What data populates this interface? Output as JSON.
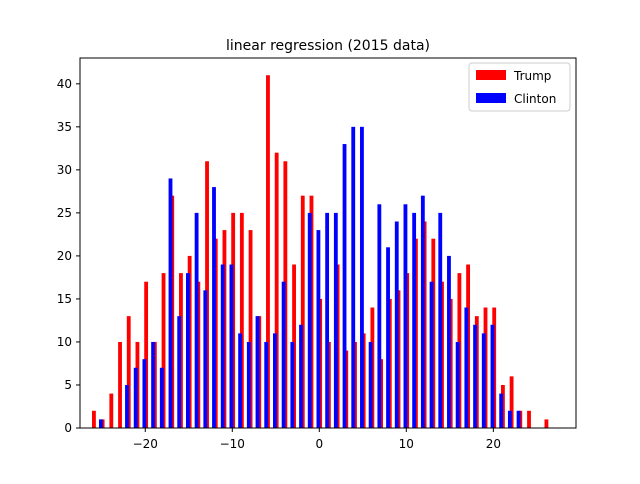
{
  "chart_data": {
    "type": "bar",
    "title": "linear regression (2015 data)",
    "xlabel": "",
    "ylabel": "",
    "xlim": [
      -27.5,
      29.5
    ],
    "ylim": [
      0,
      43
    ],
    "x_ticks": [
      -20,
      -10,
      0,
      10,
      20
    ],
    "x_tick_labels": [
      "−20",
      "−10",
      "0",
      "10",
      "20"
    ],
    "y_ticks": [
      0,
      5,
      10,
      15,
      20,
      25,
      30,
      35,
      40
    ],
    "y_tick_labels": [
      "0",
      "5",
      "10",
      "15",
      "20",
      "25",
      "30",
      "35",
      "40"
    ],
    "grid": false,
    "legend_position": "top-right",
    "series": [
      {
        "name": "Trump",
        "color": "#ff0000",
        "points": [
          {
            "x": -25.9,
            "y": 2
          },
          {
            "x": -24.9,
            "y": 1
          },
          {
            "x": -23.9,
            "y": 4
          },
          {
            "x": -22.9,
            "y": 10
          },
          {
            "x": -21.9,
            "y": 13
          },
          {
            "x": -20.9,
            "y": 10
          },
          {
            "x": -19.9,
            "y": 17
          },
          {
            "x": -18.9,
            "y": 10
          },
          {
            "x": -17.9,
            "y": 18
          },
          {
            "x": -16.9,
            "y": 27
          },
          {
            "x": -15.9,
            "y": 18
          },
          {
            "x": -14.9,
            "y": 20
          },
          {
            "x": -13.9,
            "y": 17
          },
          {
            "x": -12.9,
            "y": 31
          },
          {
            "x": -11.9,
            "y": 22
          },
          {
            "x": -10.9,
            "y": 23
          },
          {
            "x": -9.9,
            "y": 25
          },
          {
            "x": -8.9,
            "y": 25
          },
          {
            "x": -7.9,
            "y": 23
          },
          {
            "x": -6.9,
            "y": 13
          },
          {
            "x": -5.9,
            "y": 41
          },
          {
            "x": -4.9,
            "y": 32
          },
          {
            "x": -3.9,
            "y": 31
          },
          {
            "x": -2.9,
            "y": 19
          },
          {
            "x": -1.9,
            "y": 27
          },
          {
            "x": -0.9,
            "y": 27
          },
          {
            "x": 0.1,
            "y": 15
          },
          {
            "x": 1.1,
            "y": 10
          },
          {
            "x": 2.1,
            "y": 19
          },
          {
            "x": 3.1,
            "y": 9
          },
          {
            "x": 4.1,
            "y": 10
          },
          {
            "x": 5.1,
            "y": 11
          },
          {
            "x": 6.1,
            "y": 14
          },
          {
            "x": 7.1,
            "y": 8
          },
          {
            "x": 8.1,
            "y": 15
          },
          {
            "x": 9.1,
            "y": 16
          },
          {
            "x": 10.1,
            "y": 18
          },
          {
            "x": 11.1,
            "y": 22
          },
          {
            "x": 12.1,
            "y": 24
          },
          {
            "x": 13.1,
            "y": 22
          },
          {
            "x": 14.1,
            "y": 17
          },
          {
            "x": 15.1,
            "y": 15
          },
          {
            "x": 16.1,
            "y": 18
          },
          {
            "x": 17.1,
            "y": 19
          },
          {
            "x": 18.1,
            "y": 13
          },
          {
            "x": 19.1,
            "y": 14
          },
          {
            "x": 20.1,
            "y": 14
          },
          {
            "x": 21.1,
            "y": 5
          },
          {
            "x": 22.1,
            "y": 6
          },
          {
            "x": 23.1,
            "y": 2
          },
          {
            "x": 24.1,
            "y": 2
          },
          {
            "x": 26.1,
            "y": 1
          }
        ]
      },
      {
        "name": "Clinton",
        "color": "#0000ff",
        "points": [
          {
            "x": -25.1,
            "y": 1
          },
          {
            "x": -22.1,
            "y": 5
          },
          {
            "x": -21.1,
            "y": 7
          },
          {
            "x": -20.1,
            "y": 8
          },
          {
            "x": -19.1,
            "y": 10
          },
          {
            "x": -18.1,
            "y": 7
          },
          {
            "x": -17.1,
            "y": 29
          },
          {
            "x": -16.1,
            "y": 13
          },
          {
            "x": -15.1,
            "y": 18
          },
          {
            "x": -14.1,
            "y": 25
          },
          {
            "x": -13.1,
            "y": 16
          },
          {
            "x": -12.1,
            "y": 28
          },
          {
            "x": -11.1,
            "y": 19
          },
          {
            "x": -10.1,
            "y": 19
          },
          {
            "x": -9.1,
            "y": 11
          },
          {
            "x": -8.1,
            "y": 10
          },
          {
            "x": -7.1,
            "y": 13
          },
          {
            "x": -6.1,
            "y": 10
          },
          {
            "x": -5.1,
            "y": 11
          },
          {
            "x": -4.1,
            "y": 17
          },
          {
            "x": -3.1,
            "y": 10
          },
          {
            "x": -2.1,
            "y": 12
          },
          {
            "x": -1.1,
            "y": 25
          },
          {
            "x": -0.1,
            "y": 23
          },
          {
            "x": 0.9,
            "y": 25
          },
          {
            "x": 1.9,
            "y": 25
          },
          {
            "x": 2.9,
            "y": 33
          },
          {
            "x": 3.9,
            "y": 35
          },
          {
            "x": 4.9,
            "y": 35
          },
          {
            "x": 5.9,
            "y": 10
          },
          {
            "x": 6.9,
            "y": 26
          },
          {
            "x": 7.9,
            "y": 21
          },
          {
            "x": 8.9,
            "y": 24
          },
          {
            "x": 9.9,
            "y": 26
          },
          {
            "x": 10.9,
            "y": 25
          },
          {
            "x": 11.9,
            "y": 27
          },
          {
            "x": 12.9,
            "y": 17
          },
          {
            "x": 13.9,
            "y": 25
          },
          {
            "x": 14.9,
            "y": 20
          },
          {
            "x": 15.9,
            "y": 10
          },
          {
            "x": 16.9,
            "y": 14
          },
          {
            "x": 17.9,
            "y": 12
          },
          {
            "x": 18.9,
            "y": 11
          },
          {
            "x": 19.9,
            "y": 12
          },
          {
            "x": 20.9,
            "y": 4
          },
          {
            "x": 21.9,
            "y": 2
          },
          {
            "x": 22.9,
            "y": 2
          }
        ]
      }
    ]
  }
}
